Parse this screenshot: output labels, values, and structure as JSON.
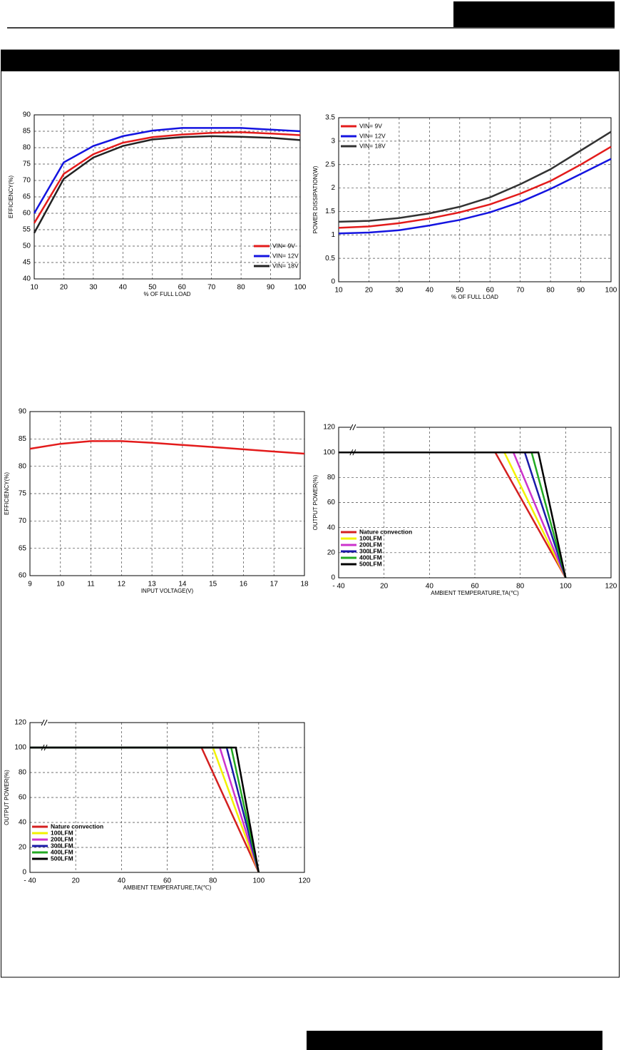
{
  "chart_data": [
    {
      "type": "line",
      "y_label": "EFFICIENCY(%)",
      "x_label": "% OF FULL LOAD",
      "grid": true,
      "legend": "lower right",
      "x": [
        10,
        20,
        30,
        40,
        50,
        60,
        70,
        80,
        90,
        100
      ],
      "xlim": [
        10,
        100
      ],
      "xticks": [
        10,
        20,
        30,
        40,
        50,
        60,
        70,
        80,
        90,
        100
      ],
      "ylim": [
        40,
        90
      ],
      "yticks": [
        40,
        45,
        50,
        55,
        60,
        65,
        70,
        75,
        80,
        85,
        90
      ],
      "series": [
        {
          "name": "VIN= 9V",
          "color": "#e31b1b",
          "values": [
            57,
            72,
            78,
            81.5,
            83.2,
            84,
            84.5,
            84.7,
            84.3,
            83.8
          ]
        },
        {
          "name": "VIN= 12V",
          "color": "#1414e0",
          "values": [
            60,
            75.5,
            80.5,
            83.5,
            85.2,
            86,
            86,
            86,
            85.5,
            85
          ]
        },
        {
          "name": "VIN= 18V",
          "color": "#222222",
          "values": [
            54,
            70.5,
            77,
            80.5,
            82.5,
            83.2,
            83.5,
            83.3,
            83,
            82.3
          ]
        }
      ]
    },
    {
      "type": "line",
      "y_label": "POWER DISSIPATION(W)",
      "x_label": "% OF FULL LOAD",
      "grid": true,
      "legend": "upper left",
      "x": [
        10,
        20,
        30,
        40,
        50,
        60,
        70,
        80,
        90,
        100
      ],
      "xlim": [
        10,
        100
      ],
      "xticks": [
        10,
        20,
        30,
        40,
        50,
        60,
        70,
        80,
        90,
        100
      ],
      "ylim": [
        0,
        3.5
      ],
      "yticks": [
        0,
        0.5,
        1,
        1.5,
        2,
        2.5,
        3,
        3.5
      ],
      "series": [
        {
          "name": "VIN= 9V",
          "color": "#e31b1b",
          "values": [
            1.15,
            1.18,
            1.25,
            1.35,
            1.48,
            1.65,
            1.88,
            2.15,
            2.5,
            2.88
          ]
        },
        {
          "name": "VIN= 12V",
          "color": "#1414e0",
          "values": [
            1.03,
            1.05,
            1.1,
            1.2,
            1.32,
            1.48,
            1.7,
            1.98,
            2.3,
            2.62
          ]
        },
        {
          "name": "VIN= 18V",
          "color": "#333333",
          "values": [
            1.28,
            1.3,
            1.36,
            1.46,
            1.6,
            1.8,
            2.08,
            2.4,
            2.8,
            3.2
          ]
        }
      ]
    },
    {
      "type": "line",
      "y_label": "EFFICIENCY(%)",
      "x_label": "INPUT VOLTAGE(V)",
      "grid": true,
      "x": [
        9,
        10,
        11,
        12,
        13,
        14,
        15,
        16,
        17,
        18
      ],
      "xlim": [
        9,
        18
      ],
      "xticks": [
        9,
        10,
        11,
        12,
        13,
        14,
        15,
        16,
        17,
        18
      ],
      "ylim": [
        60,
        90
      ],
      "yticks": [
        60,
        65,
        70,
        75,
        80,
        85,
        90
      ],
      "color": "#e31b1b",
      "values": [
        83.2,
        84.1,
        84.6,
        84.6,
        84.3,
        83.9,
        83.5,
        83.1,
        82.7,
        82.3
      ]
    },
    {
      "type": "line",
      "y_label": "OUTPUT POWER(%)",
      "x_label": "AMBIENT TEMPERATURE,TA(℃)",
      "grid": true,
      "legend": "lower left",
      "x_axis_break": true,
      "xlim": [
        -40,
        120
      ],
      "xticks": [
        {
          "value": -40,
          "label": "- 40"
        },
        20,
        40,
        60,
        80,
        100,
        120
      ],
      "ylim": [
        0,
        120
      ],
      "yticks": [
        0,
        20,
        40,
        60,
        80,
        100,
        120
      ],
      "series": [
        {
          "name": "Nature convection",
          "color": "#d42020",
          "x": [
            -40,
            69,
            100
          ],
          "values": [
            100,
            100,
            0
          ]
        },
        {
          "name": "100LFM",
          "color": "#f2f200",
          "x": [
            -40,
            73,
            100
          ],
          "values": [
            100,
            100,
            0
          ]
        },
        {
          "name": "200LFM",
          "color": "#cc33cc",
          "x": [
            -40,
            77,
            100
          ],
          "values": [
            100,
            100,
            0
          ]
        },
        {
          "name": "300LFM",
          "color": "#1a1aa8",
          "x": [
            -40,
            82,
            100
          ],
          "values": [
            100,
            100,
            0
          ]
        },
        {
          "name": "400LFM",
          "color": "#22aa22",
          "x": [
            -40,
            85,
            100
          ],
          "values": [
            100,
            100,
            0
          ]
        },
        {
          "name": "500LFM",
          "color": "#000000",
          "x": [
            -40,
            88,
            100
          ],
          "values": [
            100,
            100,
            0
          ]
        }
      ]
    },
    {
      "type": "line",
      "y_label": "OUTPUT POWER(%)",
      "x_label": "AMBIENT TEMPERATURE,TA(℃)",
      "grid": true,
      "legend": "lower left",
      "x_axis_break": true,
      "xlim": [
        -40,
        120
      ],
      "xticks": [
        {
          "value": -40,
          "label": "- 40"
        },
        20,
        40,
        60,
        80,
        100,
        120
      ],
      "ylim": [
        0,
        120
      ],
      "yticks": [
        0,
        20,
        40,
        60,
        80,
        100,
        120
      ],
      "series": [
        {
          "name": "Nature convection",
          "color": "#d42020",
          "x": [
            -40,
            75,
            100
          ],
          "values": [
            100,
            100,
            0
          ]
        },
        {
          "name": "100LFM",
          "color": "#f2f200",
          "x": [
            -40,
            80,
            100
          ],
          "values": [
            100,
            100,
            0
          ]
        },
        {
          "name": "200LFM",
          "color": "#cc33cc",
          "x": [
            -40,
            83,
            100
          ],
          "values": [
            100,
            100,
            0
          ]
        },
        {
          "name": "300LFM",
          "color": "#1a1aa8",
          "x": [
            -40,
            86,
            100
          ],
          "values": [
            100,
            100,
            0
          ]
        },
        {
          "name": "400LFM",
          "color": "#22aa22",
          "x": [
            -40,
            88,
            100
          ],
          "values": [
            100,
            100,
            0
          ]
        },
        {
          "name": "500LFM",
          "color": "#000000",
          "x": [
            -40,
            90,
            100
          ],
          "values": [
            100,
            100,
            0
          ]
        }
      ]
    }
  ]
}
